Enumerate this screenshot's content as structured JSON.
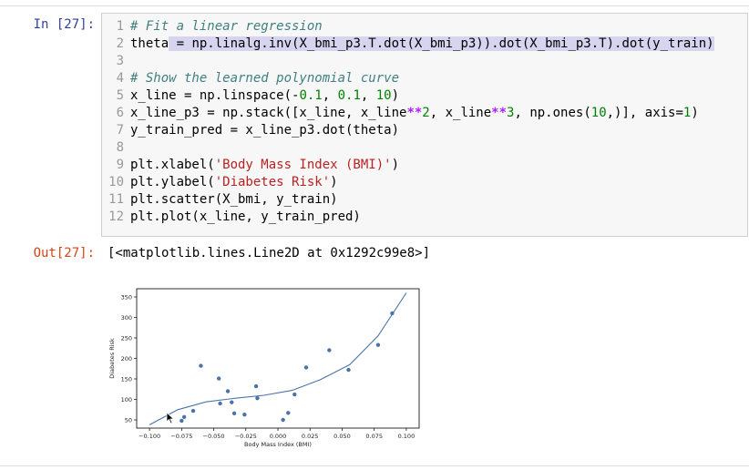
{
  "input_prompt": "In [27]:",
  "output_prompt": "Out[27]:",
  "output_text": "[<matplotlib.lines.Line2D at 0x1292c99e8>]",
  "code_lines": [
    {
      "n": "1",
      "parts": [
        {
          "t": "# Fit a linear regression",
          "c": "c-com"
        }
      ]
    },
    {
      "n": "2",
      "parts": [
        {
          "t": "theta"
        },
        {
          "t": " = np.linalg.inv(X_bmi_p3.T.dot(X_bmi_p3)).dot(X_bmi_p3.T).dot(y_train)",
          "c": "sel"
        }
      ]
    },
    {
      "n": "3",
      "parts": []
    },
    {
      "n": "4",
      "parts": [
        {
          "t": "# Show the learned polynomial curve",
          "c": "c-com"
        }
      ]
    },
    {
      "n": "5",
      "parts": [
        {
          "t": "x_line = np.linspace(-"
        },
        {
          "t": "0.1",
          "c": "c-num"
        },
        {
          "t": ", "
        },
        {
          "t": "0.1",
          "c": "c-num"
        },
        {
          "t": ", "
        },
        {
          "t": "10",
          "c": "c-num"
        },
        {
          "t": ")"
        }
      ]
    },
    {
      "n": "6",
      "parts": [
        {
          "t": "x_line_p3 = np.stack([x_line, x_line"
        },
        {
          "t": "**",
          "c": "c-op"
        },
        {
          "t": "2",
          "c": "c-num"
        },
        {
          "t": ", x_line"
        },
        {
          "t": "**",
          "c": "c-op"
        },
        {
          "t": "3",
          "c": "c-num"
        },
        {
          "t": ", np.ones("
        },
        {
          "t": "10",
          "c": "c-num"
        },
        {
          "t": ",)], axis="
        },
        {
          "t": "1",
          "c": "c-num"
        },
        {
          "t": ")"
        }
      ]
    },
    {
      "n": "7",
      "parts": [
        {
          "t": "y_train_pred = x_line_p3.dot(theta)"
        }
      ]
    },
    {
      "n": "8",
      "parts": []
    },
    {
      "n": "9",
      "parts": [
        {
          "t": "plt.xlabel("
        },
        {
          "t": "'Body Mass Index (BMI)'",
          "c": "c-str"
        },
        {
          "t": ")"
        }
      ]
    },
    {
      "n": "10",
      "parts": [
        {
          "t": "plt.ylabel("
        },
        {
          "t": "'Diabetes Risk'",
          "c": "c-str"
        },
        {
          "t": ")"
        }
      ]
    },
    {
      "n": "11",
      "parts": [
        {
          "t": "plt.scatter(X_bmi, y_train)"
        }
      ]
    },
    {
      "n": "12",
      "parts": [
        {
          "t": "plt.plot(x_line, y_train_pred)"
        }
      ]
    }
  ],
  "colors": {
    "series": "#4a74a8",
    "axis": "#000000"
  },
  "chart_data": {
    "type": "scatter",
    "xlabel": "Body Mass Index (BMI)",
    "ylabel": "Diabetes Risk",
    "xlim": [
      -0.11,
      0.11
    ],
    "ylim": [
      30,
      370
    ],
    "xticks": [
      -0.1,
      -0.075,
      -0.05,
      -0.025,
      0.0,
      0.025,
      0.05,
      0.075,
      0.1
    ],
    "xtick_labels": [
      "−0.100",
      "−0.075",
      "−0.050",
      "−0.025",
      "0.000",
      "0.025",
      "0.050",
      "0.075",
      "0.100"
    ],
    "yticks": [
      50,
      100,
      150,
      200,
      250,
      300,
      350
    ],
    "ytick_labels": [
      "50",
      "100",
      "150",
      "200",
      "250",
      "300",
      "350"
    ],
    "scatter": {
      "x": [
        -0.075,
        -0.073,
        -0.066,
        -0.06,
        -0.046,
        -0.045,
        -0.039,
        -0.036,
        -0.034,
        -0.026,
        -0.017,
        -0.016,
        0.004,
        0.008,
        0.013,
        0.022,
        0.04,
        0.055,
        0.078,
        0.089
      ],
      "y": [
        48,
        57,
        72,
        182,
        151,
        90,
        120,
        93,
        66,
        63,
        132,
        103,
        50,
        67,
        112,
        178,
        220,
        172,
        233,
        310
      ]
    },
    "line": {
      "x": [
        -0.1,
        -0.078,
        -0.056,
        -0.033,
        -0.011,
        0.011,
        0.033,
        0.056,
        0.078,
        0.1
      ],
      "y": [
        38,
        75,
        94,
        103,
        110,
        122,
        148,
        185,
        255,
        360
      ]
    }
  }
}
